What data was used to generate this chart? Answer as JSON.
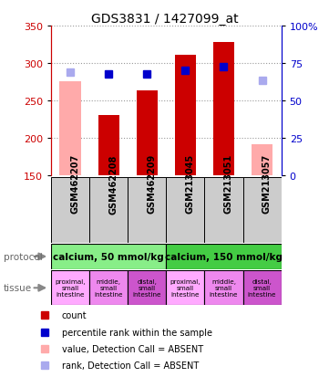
{
  "title": "GDS3831 / 1427099_at",
  "samples": [
    "GSM462207",
    "GSM462208",
    "GSM462209",
    "GSM213045",
    "GSM213051",
    "GSM213057"
  ],
  "bar_values": [
    null,
    230,
    263,
    311,
    328,
    null
  ],
  "bar_absent_values": [
    275,
    null,
    null,
    null,
    null,
    191
  ],
  "rank_values": [
    null,
    285,
    285,
    290,
    295,
    null
  ],
  "rank_absent_values": [
    288,
    null,
    null,
    null,
    null,
    277
  ],
  "bar_color": "#cc0000",
  "bar_absent_color": "#ffaaaa",
  "rank_color": "#0000cc",
  "rank_absent_color": "#aaaaee",
  "ylim": [
    150,
    350
  ],
  "yticks_left": [
    150,
    200,
    250,
    300,
    350
  ],
  "right_ticks_pos": [
    150,
    200,
    250,
    300,
    350
  ],
  "right_ticks_labels": [
    "0",
    "25",
    "50",
    "75",
    "100%"
  ],
  "protocol_groups": [
    {
      "label": "calcium, 50 mmol/kg",
      "start": 0,
      "end": 3,
      "color": "#88ee88"
    },
    {
      "label": "calcium, 150 mmol/kg",
      "start": 3,
      "end": 6,
      "color": "#44cc44"
    }
  ],
  "tissues": [
    {
      "label": "proximal,\nsmall\nintestine",
      "color": "#ffaaff"
    },
    {
      "label": "middle,\nsmall\nintestine",
      "color": "#ee88ee"
    },
    {
      "label": "distal,\nsmall\nintestine",
      "color": "#cc55cc"
    },
    {
      "label": "proximal,\nsmall\nintestine",
      "color": "#ffaaff"
    },
    {
      "label": "middle,\nsmall\nintestine",
      "color": "#ee88ee"
    },
    {
      "label": "distal,\nsmall\nintestine",
      "color": "#cc55cc"
    }
  ],
  "bar_width": 0.55,
  "rank_marker_size": 6,
  "sample_box_color": "#cccccc",
  "bar_bottom": 150,
  "legend_items": [
    {
      "color": "#cc0000",
      "label": "count"
    },
    {
      "color": "#0000cc",
      "label": "percentile rank within the sample"
    },
    {
      "color": "#ffaaaa",
      "label": "value, Detection Call = ABSENT"
    },
    {
      "color": "#aaaaee",
      "label": "rank, Detection Call = ABSENT"
    }
  ]
}
